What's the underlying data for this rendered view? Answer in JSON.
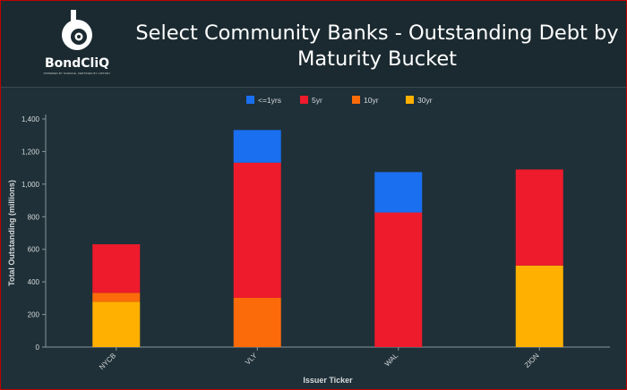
{
  "header": {
    "logo_name": "BondCliQ",
    "logo_tagline": "POWERED BY SCIENCE, CERTIFIED BY HISTORY",
    "title_line1": "Select Community Banks - Outstanding Debt by",
    "title_line2": "Maturity Bucket"
  },
  "colors": {
    "lt1yr": "#1a6ff0",
    "5yr": "#ee1b2c",
    "10yr": "#fb6b0a",
    "30yr": "#ffb000",
    "text": "#d6dadc",
    "axis": "#8a969a",
    "background": "#1f3038"
  },
  "chart_data": {
    "type": "bar",
    "stacked": true,
    "categories": [
      "NYCB",
      "VLY",
      "WAL",
      "ZION"
    ],
    "series": [
      {
        "name": "30yr",
        "values": [
          278,
          0,
          0,
          500
        ]
      },
      {
        "name": "10yr",
        "values": [
          55,
          302,
          0,
          0
        ]
      },
      {
        "name": "5yr",
        "values": [
          298,
          830,
          826,
          590
        ]
      },
      {
        "name": "<=1yrs",
        "values": [
          0,
          200,
          248,
          0
        ]
      }
    ],
    "legend_order": [
      "<=1yrs",
      "5yr",
      "10yr",
      "30yr"
    ],
    "legend_position": "top",
    "xlabel": "Issuer Ticker",
    "ylabel": "Total Outstanding (millions)",
    "ylim": [
      0,
      1400
    ],
    "yticks": [
      0,
      200,
      400,
      600,
      800,
      1000,
      1200,
      1400
    ],
    "ytick_labels": [
      "0",
      "200",
      "400",
      "600",
      "800",
      "1,000",
      "1,200",
      "1,400"
    ],
    "grid": false
  }
}
